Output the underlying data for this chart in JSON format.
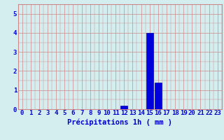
{
  "hours": [
    0,
    1,
    2,
    3,
    4,
    5,
    6,
    7,
    8,
    9,
    10,
    11,
    12,
    13,
    14,
    15,
    16,
    17,
    18,
    19,
    20,
    21,
    22,
    23
  ],
  "values": [
    0,
    0,
    0,
    0,
    0,
    0,
    0,
    0,
    0,
    0,
    0,
    0,
    0.2,
    0,
    0,
    4.0,
    1.4,
    0,
    0,
    0,
    0,
    0,
    0,
    0
  ],
  "bar_color": "#0000dd",
  "bar_edge_color": "#0000aa",
  "background_color": "#d4eef0",
  "grid_color": "#cc8888",
  "xlabel": "Précipitations 1h ( mm )",
  "xlabel_color": "#0000cc",
  "tick_color": "#0000cc",
  "ylim": [
    0,
    5.5
  ],
  "yticks": [
    0,
    1,
    2,
    3,
    4,
    5
  ],
  "xlim": [
    -0.5,
    23.5
  ],
  "xlabel_fontsize": 7.5,
  "tick_fontsize": 6.5
}
